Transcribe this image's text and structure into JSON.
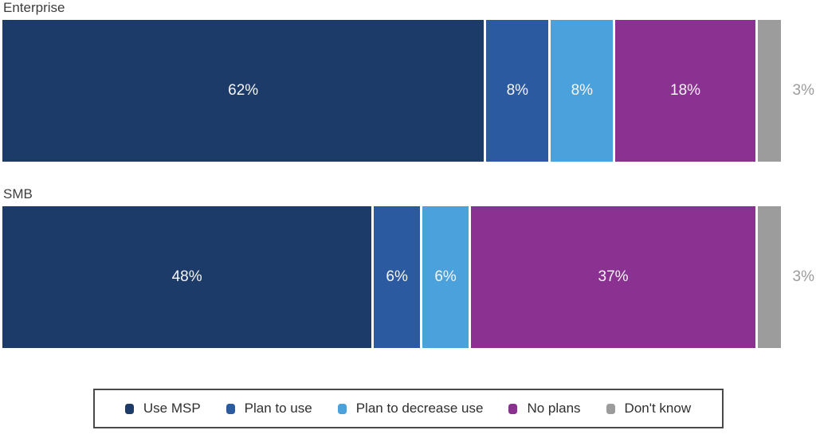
{
  "chart_data": {
    "type": "bar",
    "orientation": "horizontal-stacked",
    "title": "",
    "xlabel": "",
    "ylabel": "",
    "x_range_percent": [
      0,
      100
    ],
    "grid": false,
    "legend_position": "bottom",
    "categories": [
      "Enterprise",
      "SMB"
    ],
    "series": [
      {
        "name": "Use MSP",
        "color": "#1d3b69",
        "values": [
          62,
          48
        ]
      },
      {
        "name": "Plan to use",
        "color": "#2b5aa0",
        "values": [
          8,
          6
        ]
      },
      {
        "name": "Plan to decrease use",
        "color": "#4aa1db",
        "values": [
          8,
          6
        ]
      },
      {
        "name": "No plans",
        "color": "#8b3191",
        "values": [
          18,
          37
        ]
      },
      {
        "name": "Don't know",
        "color": "#9c9c9c",
        "values": [
          3,
          3
        ]
      }
    ],
    "value_labels": [
      [
        "62%",
        "8%",
        "8%",
        "18%",
        "3%"
      ],
      [
        "48%",
        "6%",
        "6%",
        "37%",
        "3%"
      ]
    ],
    "label_outside_series": "Don't know"
  },
  "rows": [
    {
      "label": "Enterprise",
      "outside_label": "3%"
    },
    {
      "label": "SMB",
      "outside_label": "3%"
    }
  ],
  "legend": {
    "items": [
      "Use MSP",
      "Plan to use",
      "Plan to decrease use",
      "No plans",
      "Don't know"
    ]
  },
  "colors": {
    "in_bar_label": "#f5f5f5",
    "row_label": "#3d3d3d",
    "outside_label": "#9b9b9b",
    "legend_text": "#2f2f2f",
    "legend_border": "#4a4a4a",
    "background": "#ffffff"
  }
}
